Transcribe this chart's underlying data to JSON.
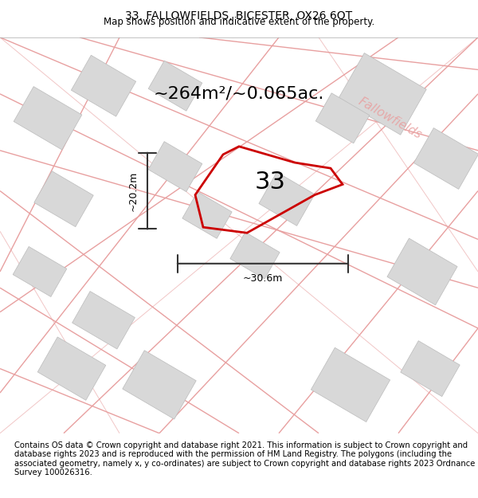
{
  "title": "33, FALLOWFIELDS, BICESTER, OX26 6QT",
  "subtitle": "Map shows position and indicative extent of the property.",
  "footer": "Contains OS data © Crown copyright and database right 2021. This information is subject to Crown copyright and database rights 2023 and is reproduced with the permission of HM Land Registry. The polygons (including the associated geometry, namely x, y co-ordinates) are subject to Crown copyright and database rights 2023 Ordnance Survey 100026316.",
  "area_text": "~264m²/~0.065ac.",
  "plot_number": "33",
  "width_label": "~30.6m",
  "height_label": "~20.2m",
  "road_label": "Fallowfields",
  "bg_color": "#f5f0f0",
  "map_bg": "#f5f0f0",
  "plot_color": "#cc0000",
  "building_fill": "#d8d8d8",
  "road_line_color": "#e8a0a0",
  "dim_line_color": "#333333",
  "title_fontsize": 10,
  "subtitle_fontsize": 8.5,
  "footer_fontsize": 7.2,
  "area_fontsize": 16,
  "plot_num_fontsize": 22,
  "road_label_fontsize": 11,
  "dim_label_fontsize": 9
}
